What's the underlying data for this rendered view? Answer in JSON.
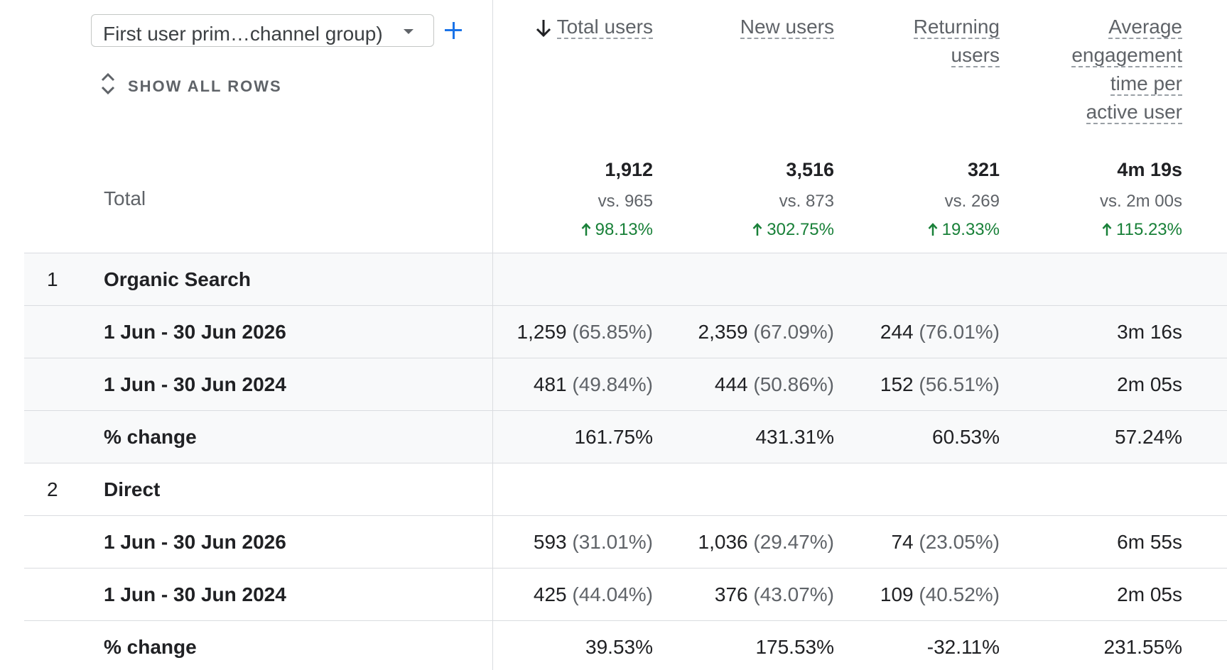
{
  "dimension_selector": {
    "value": "First user prim…channel group)"
  },
  "show_all_rows": {
    "label": "SHOW ALL ROWS"
  },
  "columns": {
    "total_users": [
      "Total users"
    ],
    "new_users": [
      "New users"
    ],
    "returning_users": [
      "Returning",
      "users"
    ],
    "avg_engagement": [
      "Average",
      "engagement",
      "time per",
      "active user"
    ]
  },
  "totals": {
    "label": "Total",
    "total_users": {
      "value": "1,912",
      "vs": "vs. 965",
      "change": "98.13%"
    },
    "new_users": {
      "value": "3,516",
      "vs": "vs. 873",
      "change": "302.75%"
    },
    "returning_users": {
      "value": "321",
      "vs": "vs. 269",
      "change": "19.33%"
    },
    "avg_engagement": {
      "value": "4m 19s",
      "vs": "vs. 2m 00s",
      "change": "115.23%"
    }
  },
  "groups": [
    {
      "index": "1",
      "name": "Organic Search",
      "rows": [
        {
          "label": "1 Jun - 30 Jun 2026",
          "total_users": {
            "value": "1,259",
            "pct": "(65.85%)"
          },
          "new_users": {
            "value": "2,359",
            "pct": "(67.09%)"
          },
          "returning_users": {
            "value": "244",
            "pct": "(76.01%)"
          },
          "avg_engagement": "3m 16s"
        },
        {
          "label": "1 Jun - 30 Jun 2024",
          "total_users": {
            "value": "481",
            "pct": "(49.84%)"
          },
          "new_users": {
            "value": "444",
            "pct": "(50.86%)"
          },
          "returning_users": {
            "value": "152",
            "pct": "(56.51%)"
          },
          "avg_engagement": "2m 05s"
        },
        {
          "label": "% change",
          "total_users": {
            "value": "161.75%"
          },
          "new_users": {
            "value": "431.31%"
          },
          "returning_users": {
            "value": "60.53%"
          },
          "avg_engagement": "57.24%"
        }
      ]
    },
    {
      "index": "2",
      "name": "Direct",
      "rows": [
        {
          "label": "1 Jun - 30 Jun 2026",
          "total_users": {
            "value": "593",
            "pct": "(31.01%)"
          },
          "new_users": {
            "value": "1,036",
            "pct": "(29.47%)"
          },
          "returning_users": {
            "value": "74",
            "pct": "(23.05%)"
          },
          "avg_engagement": "6m 55s"
        },
        {
          "label": "1 Jun - 30 Jun 2024",
          "total_users": {
            "value": "425",
            "pct": "(44.04%)"
          },
          "new_users": {
            "value": "376",
            "pct": "(43.07%)"
          },
          "returning_users": {
            "value": "109",
            "pct": "(40.52%)"
          },
          "avg_engagement": "2m 05s"
        },
        {
          "label": "% change",
          "total_users": {
            "value": "39.53%"
          },
          "new_users": {
            "value": "175.53%"
          },
          "returning_users": {
            "value": "-32.11%"
          },
          "avg_engagement": "231.55%"
        }
      ]
    }
  ],
  "colors": {
    "positive": "#188038",
    "accent": "#1a73e8",
    "band": "#f8f9fa",
    "divider": "#dadce0"
  }
}
